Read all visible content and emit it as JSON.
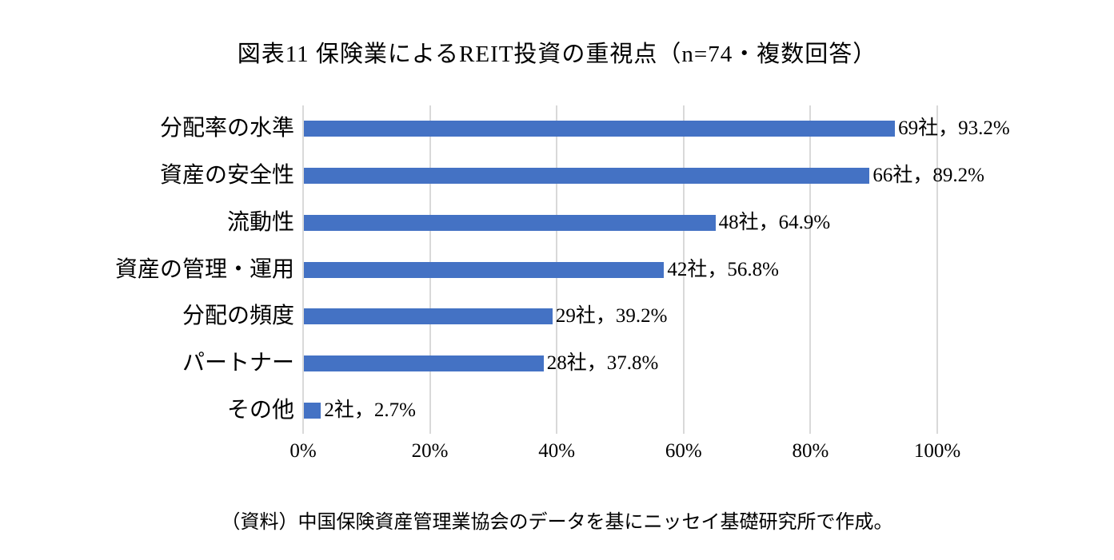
{
  "page": {
    "source_note": "（資料）中国保険資産管理業協会のデータを基にニッセイ基礎研究所で作成。"
  },
  "chart_data": {
    "type": "bar",
    "orientation": "horizontal",
    "title": "図表11 保険業によるREIT投資の重視点（n=74・複数回答）",
    "n": 74,
    "categories": [
      "分配率の水準",
      "資産の安全性",
      "流動性",
      "資産の管理・運用",
      "分配の頻度",
      "パートナー",
      "その他"
    ],
    "series": [
      {
        "name": "回答割合(%)",
        "values": [
          93.2,
          89.2,
          64.9,
          56.8,
          39.2,
          37.8,
          2.7
        ]
      },
      {
        "name": "回答社数",
        "values": [
          69,
          66,
          48,
          42,
          29,
          28,
          2
        ]
      }
    ],
    "data_labels": [
      "69社，93.2%",
      "66社，89.2%",
      "48社，64.9%",
      "42社，56.8%",
      "29社，39.2%",
      "28社，37.8%",
      "2社，2.7%"
    ],
    "xlabel": "",
    "ylabel": "",
    "xlim": [
      0,
      100
    ],
    "x_ticks": [
      0,
      20,
      40,
      60,
      80,
      100
    ],
    "x_tick_labels": [
      "0%",
      "20%",
      "40%",
      "60%",
      "80%",
      "100%"
    ],
    "grid": "vertical-only",
    "legend": "none",
    "bar_color": "#4472C4",
    "gridline_color": "#D9D9D9",
    "text_color": "#000000",
    "background_color": "#FFFFFF"
  }
}
